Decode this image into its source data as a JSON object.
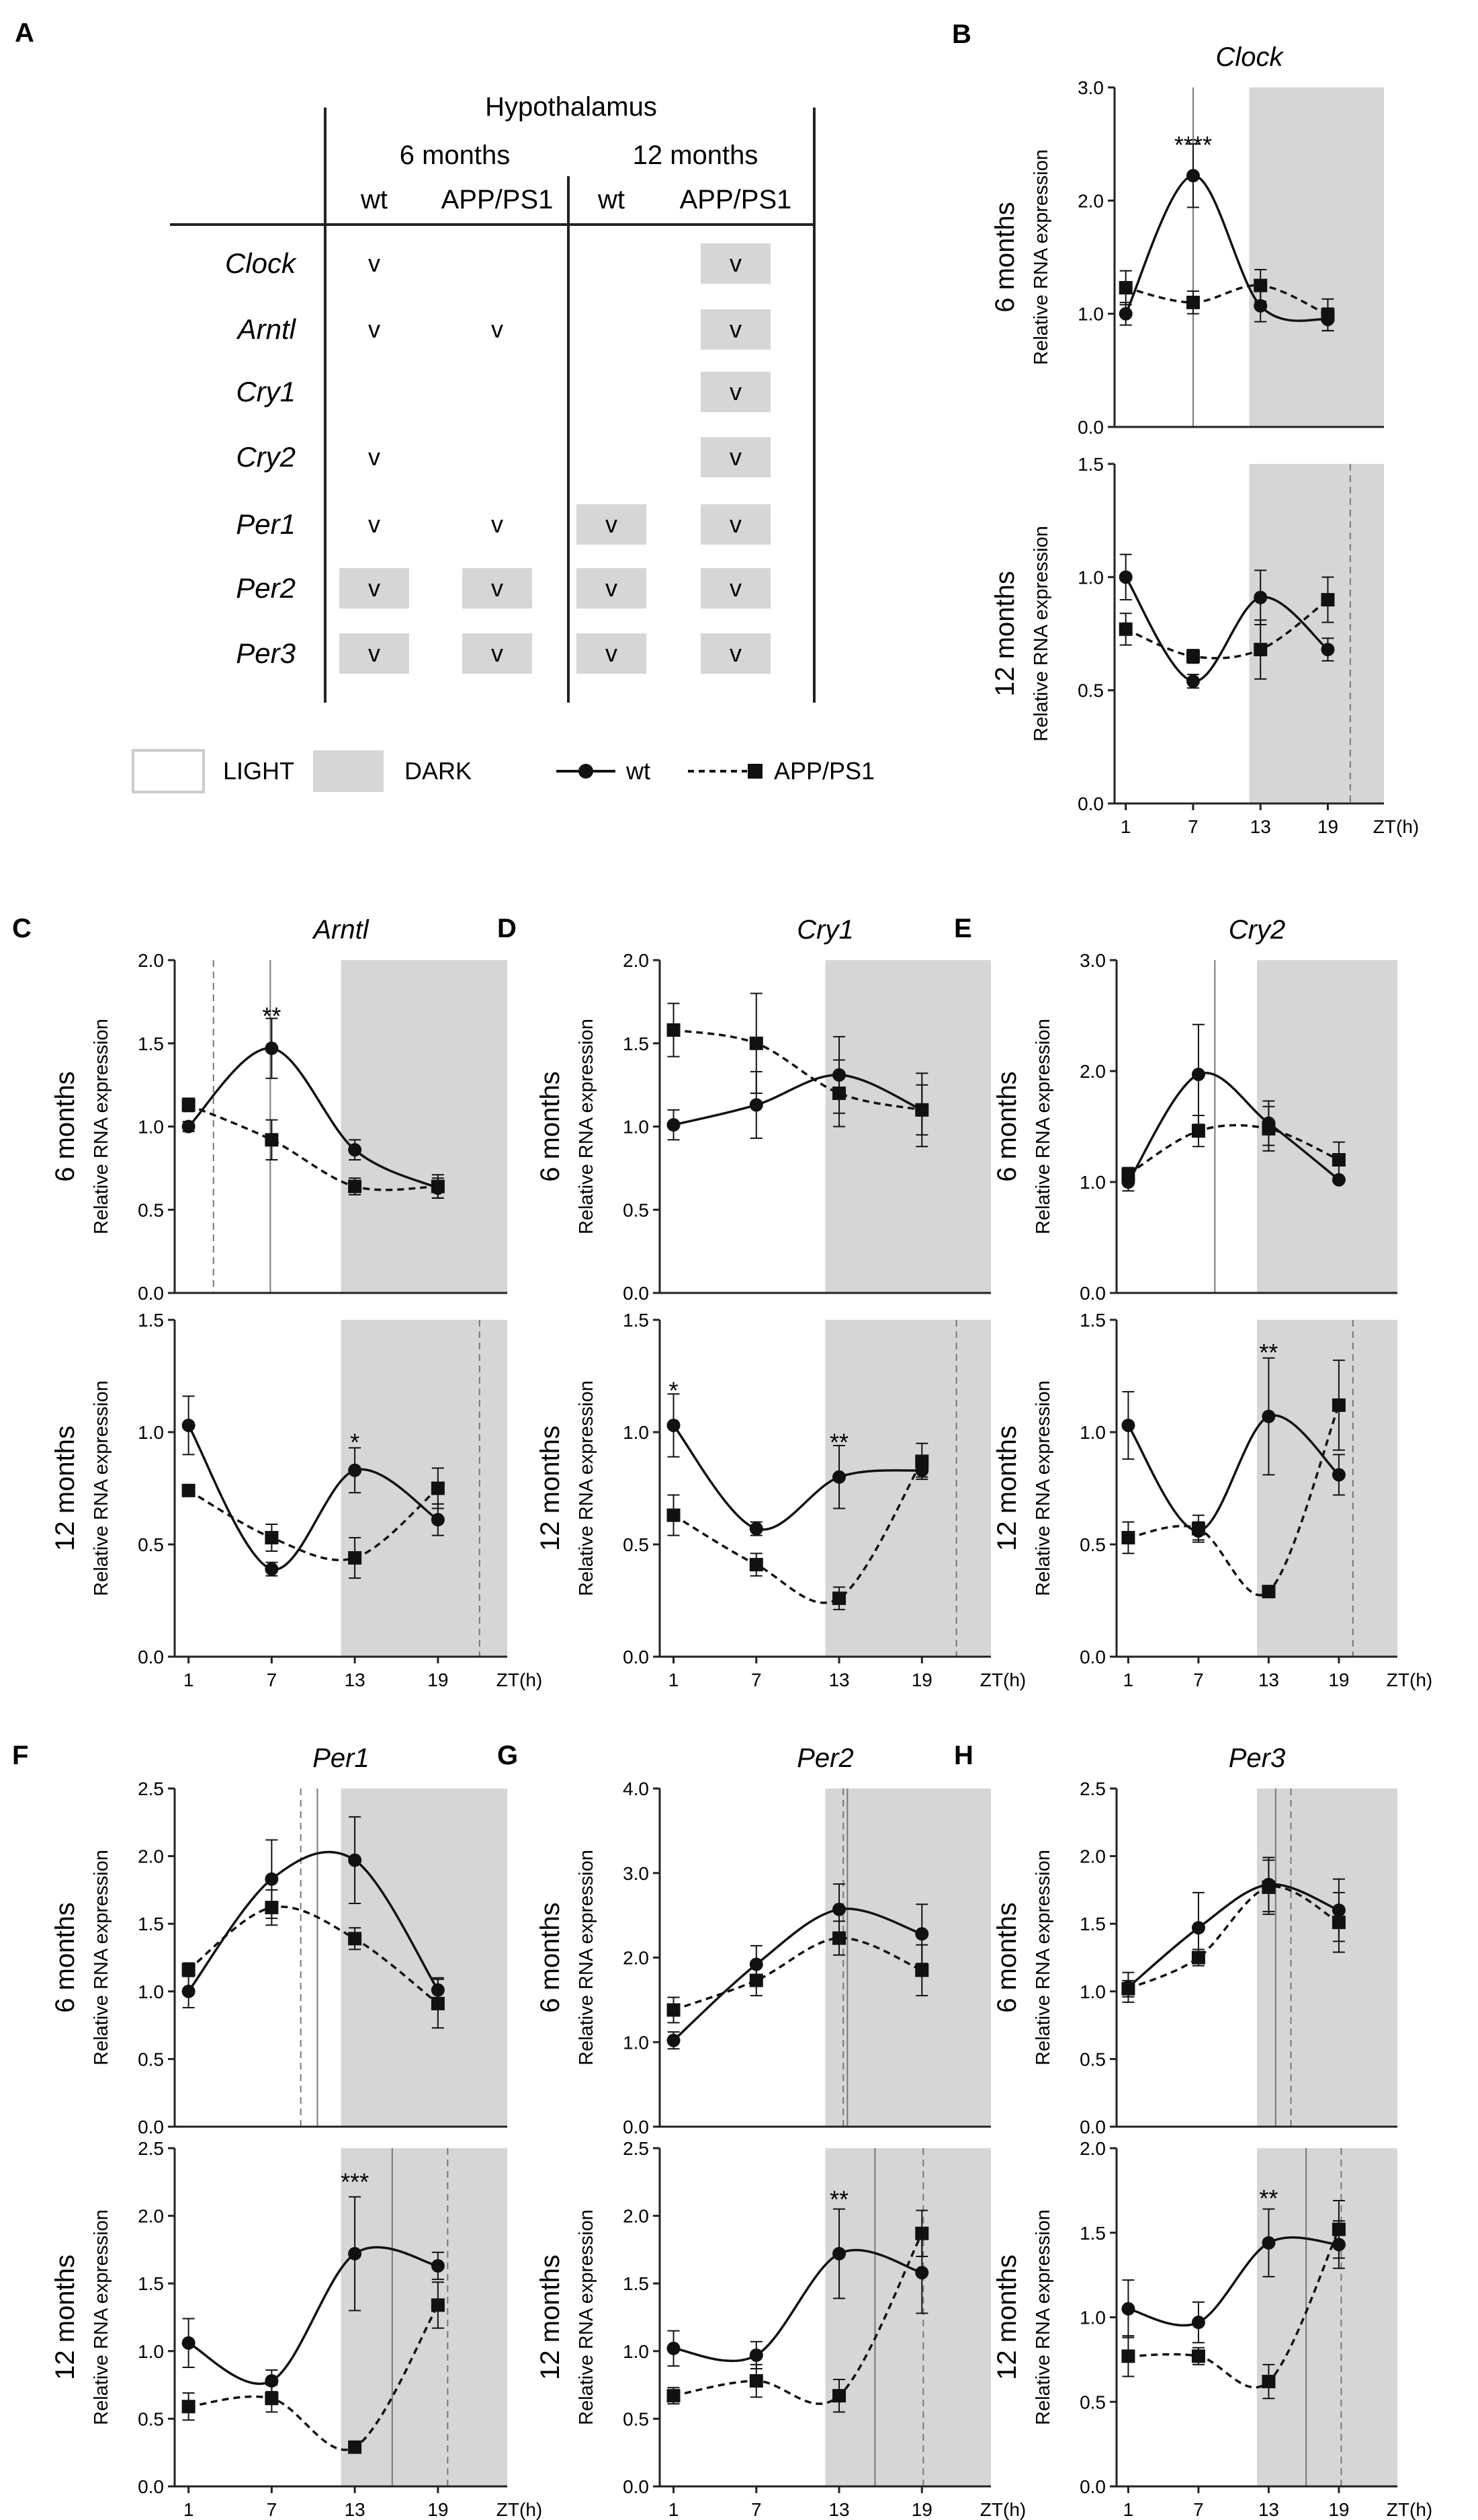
{
  "figure_legend": {
    "light_label": "LIGHT",
    "dark_label": "DARK",
    "wt_label": "wt",
    "app_label": "APP/PS1"
  },
  "table": {
    "panel_label": "A",
    "region": "Hypothalamus",
    "groups": [
      "6 months",
      "12 months"
    ],
    "columns": [
      "wt",
      "APP/PS1",
      "wt",
      "APP/PS1"
    ],
    "check_glyph": "v",
    "rows": [
      {
        "gene": "Clock",
        "cells": [
          "check",
          "",
          "",
          "check-shaded"
        ]
      },
      {
        "gene": "Arntl",
        "cells": [
          "check",
          "check",
          "",
          "check-shaded"
        ]
      },
      {
        "gene": "Cry1",
        "cells": [
          "",
          "",
          "",
          "check-shaded"
        ]
      },
      {
        "gene": "Cry2",
        "cells": [
          "check",
          "",
          "",
          "check-shaded"
        ]
      },
      {
        "gene": "Per1",
        "cells": [
          "check",
          "check",
          "check-shaded",
          "check-shaded"
        ]
      },
      {
        "gene": "Per2",
        "cells": [
          "check-shaded",
          "check-shaded",
          "check-shaded",
          "check-shaded"
        ]
      },
      {
        "gene": "Per3",
        "cells": [
          "check-shaded",
          "check-shaded",
          "check-shaded",
          "check-shaded"
        ]
      }
    ]
  },
  "axis_common": {
    "ylabel": "Relative RNA expression",
    "x_ticks": [
      "1",
      "7",
      "13",
      "19"
    ],
    "x_unit": "ZT(h)",
    "row_labels": [
      "6 months",
      "12 months"
    ],
    "dark_phase_start_zt": 12
  },
  "chart_data": [
    {
      "type": "line",
      "panel": "B",
      "title": "Clock",
      "row": "6 months",
      "ylim": [
        0,
        3
      ],
      "ytick_labels": [
        "0.0",
        "1.0",
        "2.0",
        "3.0"
      ],
      "x": [
        1,
        7,
        13,
        19
      ],
      "series": [
        {
          "name": "wt",
          "values": [
            1.0,
            2.22,
            1.07,
            0.95
          ],
          "errors": [
            0.1,
            0.28,
            0.14,
            0.1
          ]
        },
        {
          "name": "APP/PS1",
          "values": [
            1.23,
            1.1,
            1.25,
            0.99
          ],
          "errors": [
            0.15,
            0.1,
            0.14,
            0.14
          ]
        }
      ],
      "acrophase": {
        "wt": 7,
        "app": null
      },
      "annotations": [
        {
          "x": 7,
          "y": 2.5,
          "label": "****"
        }
      ]
    },
    {
      "type": "line",
      "panel": "B",
      "title": "Clock",
      "row": "12 months",
      "ylim": [
        0,
        1.5
      ],
      "ytick_labels": [
        "0.0",
        "0.5",
        "1.0",
        "1.5"
      ],
      "x": [
        1,
        7,
        13,
        19
      ],
      "series": [
        {
          "name": "wt",
          "values": [
            1.0,
            0.54,
            0.91,
            0.68
          ],
          "errors": [
            0.1,
            0.03,
            0.12,
            0.05
          ]
        },
        {
          "name": "APP/PS1",
          "values": [
            0.77,
            0.65,
            0.68,
            0.9
          ],
          "errors": [
            0.07,
            0.03,
            0.13,
            0.1
          ]
        }
      ],
      "acrophase": {
        "wt": null,
        "app": 21
      },
      "annotations": []
    },
    {
      "type": "line",
      "panel": "C",
      "title": "Arntl",
      "row": "6 months",
      "ylim": [
        0,
        2
      ],
      "ytick_labels": [
        "0.0",
        "0.5",
        "1.0",
        "1.5",
        "2.0"
      ],
      "x": [
        1,
        7,
        13,
        19
      ],
      "series": [
        {
          "name": "wt",
          "values": [
            1.0,
            1.47,
            0.86,
            0.63
          ],
          "errors": [
            0.03,
            0.18,
            0.06,
            0.06
          ]
        },
        {
          "name": "APP/PS1",
          "values": [
            1.13,
            0.92,
            0.64,
            0.64
          ],
          "errors": [
            0.04,
            0.12,
            0.05,
            0.07
          ]
        }
      ],
      "acrophase": {
        "wt": 6.9,
        "app": 2.8
      },
      "annotations": [
        {
          "x": 7,
          "y": 1.67,
          "label": "**"
        }
      ]
    },
    {
      "type": "line",
      "panel": "C",
      "title": "Arntl",
      "row": "12 months",
      "ylim": [
        0,
        1.5
      ],
      "ytick_labels": [
        "0.0",
        "0.5",
        "1.0",
        "1.5"
      ],
      "x": [
        1,
        7,
        13,
        19
      ],
      "series": [
        {
          "name": "wt",
          "values": [
            1.03,
            0.39,
            0.83,
            0.61
          ],
          "errors": [
            0.13,
            0.03,
            0.1,
            0.07
          ]
        },
        {
          "name": "APP/PS1",
          "values": [
            0.74,
            0.53,
            0.44,
            0.75
          ],
          "errors": [
            0.0,
            0.06,
            0.09,
            0.09
          ]
        }
      ],
      "acrophase": {
        "wt": null,
        "app": 22
      },
      "annotations": [
        {
          "x": 13,
          "y": 0.96,
          "label": "*"
        }
      ]
    },
    {
      "type": "line",
      "panel": "D",
      "title": "Cry1",
      "row": "6 months",
      "ylim": [
        0,
        2
      ],
      "ytick_labels": [
        "0.0",
        "0.5",
        "1.0",
        "1.5",
        "2.0"
      ],
      "x": [
        1,
        7,
        13,
        19
      ],
      "series": [
        {
          "name": "wt",
          "values": [
            1.01,
            1.13,
            1.31,
            1.1
          ],
          "errors": [
            0.09,
            0.2,
            0.23,
            0.22
          ]
        },
        {
          "name": "APP/PS1",
          "values": [
            1.58,
            1.5,
            1.2,
            1.1
          ],
          "errors": [
            0.16,
            0.3,
            0.2,
            0.15
          ]
        }
      ],
      "acrophase": {
        "wt": null,
        "app": null
      },
      "annotations": []
    },
    {
      "type": "line",
      "panel": "D",
      "title": "Cry1",
      "row": "12 months",
      "ylim": [
        0,
        1.5
      ],
      "ytick_labels": [
        "0.0",
        "0.5",
        "1.0",
        "1.5"
      ],
      "x": [
        1,
        7,
        13,
        19
      ],
      "series": [
        {
          "name": "wt",
          "values": [
            1.03,
            0.57,
            0.8,
            0.83
          ],
          "errors": [
            0.14,
            0.03,
            0.14,
            0.03
          ]
        },
        {
          "name": "APP/PS1",
          "values": [
            0.63,
            0.41,
            0.26,
            0.87
          ],
          "errors": [
            0.09,
            0.05,
            0.05,
            0.08
          ]
        }
      ],
      "acrophase": {
        "wt": null,
        "app": 21.5
      },
      "annotations": [
        {
          "x": 1,
          "y": 1.19,
          "label": "*"
        },
        {
          "x": 13,
          "y": 0.96,
          "label": "**"
        }
      ]
    },
    {
      "type": "line",
      "panel": "E",
      "title": "Cry2",
      "row": "6 months",
      "ylim": [
        0,
        3
      ],
      "ytick_labels": [
        "0.0",
        "1.0",
        "2.0",
        "3.0"
      ],
      "x": [
        1,
        7,
        13,
        19
      ],
      "series": [
        {
          "name": "wt",
          "values": [
            1.0,
            1.97,
            1.53,
            1.02
          ],
          "errors": [
            0.08,
            0.45,
            0.2,
            0.02
          ]
        },
        {
          "name": "APP/PS1",
          "values": [
            1.07,
            1.46,
            1.48,
            1.2
          ],
          "errors": [
            0.06,
            0.14,
            0.2,
            0.16
          ]
        }
      ],
      "acrophase": {
        "wt": 8.4,
        "app": null
      },
      "annotations": []
    },
    {
      "type": "line",
      "panel": "E",
      "title": "Cry2",
      "row": "12 months",
      "ylim": [
        0,
        1.5
      ],
      "ytick_labels": [
        "0.0",
        "0.5",
        "1.0",
        "1.5"
      ],
      "x": [
        1,
        7,
        13,
        19
      ],
      "series": [
        {
          "name": "wt",
          "values": [
            1.03,
            0.56,
            1.07,
            0.81
          ],
          "errors": [
            0.15,
            0.04,
            0.26,
            0.09
          ]
        },
        {
          "name": "APP/PS1",
          "values": [
            0.53,
            0.57,
            0.29,
            1.12
          ],
          "errors": [
            0.07,
            0.06,
            0.0,
            0.2
          ]
        }
      ],
      "acrophase": {
        "wt": null,
        "app": 20.2
      },
      "annotations": [
        {
          "x": 13,
          "y": 1.36,
          "label": "**"
        }
      ]
    },
    {
      "type": "line",
      "panel": "F",
      "title": "Per1",
      "row": "6 months",
      "ylim": [
        0,
        2.5
      ],
      "ytick_labels": [
        "0.0",
        "0.5",
        "1.0",
        "1.5",
        "2.0",
        "2.5"
      ],
      "x": [
        1,
        7,
        13,
        19
      ],
      "series": [
        {
          "name": "wt",
          "values": [
            1.0,
            1.83,
            1.97,
            1.01
          ],
          "errors": [
            0.12,
            0.29,
            0.32,
            0.09
          ]
        },
        {
          "name": "APP/PS1",
          "values": [
            1.16,
            1.62,
            1.39,
            0.91
          ],
          "errors": [
            0.05,
            0.13,
            0.08,
            0.18
          ]
        }
      ],
      "acrophase": {
        "wt": 10.3,
        "app": 9.1
      },
      "annotations": []
    },
    {
      "type": "line",
      "panel": "F",
      "title": "Per1",
      "row": "12 months",
      "ylim": [
        0,
        2.5
      ],
      "ytick_labels": [
        "0.0",
        "0.5",
        "1.0",
        "1.5",
        "2.0",
        "2.5"
      ],
      "x": [
        1,
        7,
        13,
        19
      ],
      "series": [
        {
          "name": "wt",
          "values": [
            1.06,
            0.78,
            1.72,
            1.63
          ],
          "errors": [
            0.18,
            0.08,
            0.42,
            0.1
          ]
        },
        {
          "name": "APP/PS1",
          "values": [
            0.59,
            0.65,
            0.29,
            1.34
          ],
          "errors": [
            0.1,
            0.1,
            0.0,
            0.17
          ]
        }
      ],
      "acrophase": {
        "wt": 15.7,
        "app": 19.7
      },
      "annotations": [
        {
          "x": 13,
          "y": 2.26,
          "label": "***"
        }
      ]
    },
    {
      "type": "line",
      "panel": "G",
      "title": "Per2",
      "row": "6 months",
      "ylim": [
        0,
        4
      ],
      "ytick_labels": [
        "0.0",
        "1.0",
        "2.0",
        "3.0",
        "4.0"
      ],
      "x": [
        1,
        7,
        13,
        19
      ],
      "series": [
        {
          "name": "wt",
          "values": [
            1.02,
            1.92,
            2.57,
            2.28
          ],
          "errors": [
            0.1,
            0.22,
            0.3,
            0.35
          ]
        },
        {
          "name": "APP/PS1",
          "values": [
            1.38,
            1.73,
            2.23,
            1.85
          ],
          "errors": [
            0.15,
            0.18,
            0.2,
            0.3
          ]
        }
      ],
      "acrophase": {
        "wt": 13.6,
        "app": 13.3
      },
      "annotations": []
    },
    {
      "type": "line",
      "panel": "G",
      "title": "Per2",
      "row": "12 months",
      "ylim": [
        0,
        2.5
      ],
      "ytick_labels": [
        "0.0",
        "0.5",
        "1.0",
        "1.5",
        "2.0",
        "2.5"
      ],
      "x": [
        1,
        7,
        13,
        19
      ],
      "series": [
        {
          "name": "wt",
          "values": [
            1.02,
            0.97,
            1.72,
            1.58
          ],
          "errors": [
            0.13,
            0.1,
            0.33,
            0.3
          ]
        },
        {
          "name": "APP/PS1",
          "values": [
            0.67,
            0.78,
            0.67,
            1.87
          ],
          "errors": [
            0.06,
            0.12,
            0.12,
            0.17
          ]
        }
      ],
      "acrophase": {
        "wt": 15.6,
        "app": 19.1
      },
      "annotations": [
        {
          "x": 13,
          "y": 2.13,
          "label": "**"
        }
      ]
    },
    {
      "type": "line",
      "panel": "H",
      "title": "Per3",
      "row": "6 months",
      "ylim": [
        0,
        2.5
      ],
      "ytick_labels": [
        "0.0",
        "0.5",
        "1.0",
        "1.5",
        "2.0",
        "2.5"
      ],
      "x": [
        1,
        7,
        13,
        19
      ],
      "series": [
        {
          "name": "wt",
          "values": [
            1.03,
            1.47,
            1.79,
            1.6
          ],
          "errors": [
            0.11,
            0.26,
            0.2,
            0.23
          ]
        },
        {
          "name": "APP/PS1",
          "values": [
            1.02,
            1.25,
            1.77,
            1.51
          ],
          "errors": [
            0.06,
            0.06,
            0.2,
            0.22
          ]
        }
      ],
      "acrophase": {
        "wt": 13.6,
        "app": 14.9
      },
      "annotations": []
    },
    {
      "type": "line",
      "panel": "H",
      "title": "Per3",
      "row": "12 months",
      "ylim": [
        0,
        2
      ],
      "ytick_labels": [
        "0.0",
        "0.5",
        "1.0",
        "1.5",
        "2.0"
      ],
      "x": [
        1,
        7,
        13,
        19
      ],
      "series": [
        {
          "name": "wt",
          "values": [
            1.05,
            0.97,
            1.44,
            1.43
          ],
          "errors": [
            0.17,
            0.12,
            0.2,
            0.14
          ]
        },
        {
          "name": "APP/PS1",
          "values": [
            0.77,
            0.77,
            0.62,
            1.52
          ],
          "errors": [
            0.12,
            0.05,
            0.1,
            0.17
          ]
        }
      ],
      "acrophase": {
        "wt": 16.2,
        "app": 19.2
      },
      "annotations": [
        {
          "x": 13,
          "y": 1.71,
          "label": "**"
        }
      ]
    }
  ]
}
